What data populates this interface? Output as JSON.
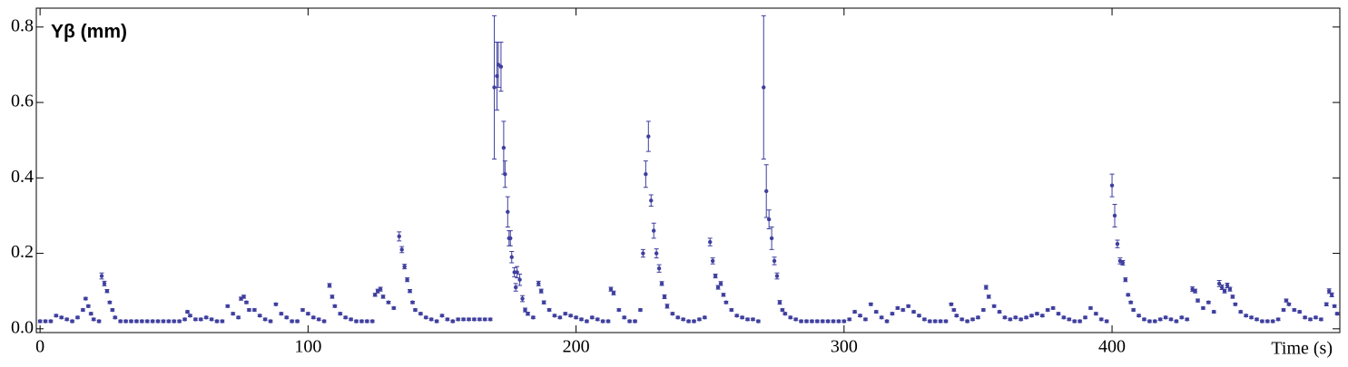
{
  "chart_data": {
    "type": "scatter",
    "x_label": "Time (s)",
    "y_label": "Yβ (mm)",
    "color": "#3f3f9f",
    "xlim": [
      -1.4,
      485
    ],
    "ylim": [
      -0.01,
      0.85
    ],
    "xticks": [
      0,
      100,
      200,
      300,
      400
    ],
    "yticks": [
      {
        "value": 0,
        "label": "0.0"
      },
      0.2,
      0.4,
      0.6,
      0.8
    ],
    "x": [
      0,
      2,
      4,
      6,
      8,
      10,
      12,
      14,
      16,
      17,
      18,
      19,
      20,
      22,
      23,
      24,
      25,
      26,
      27,
      28,
      30,
      32,
      34,
      36,
      38,
      40,
      42,
      44,
      46,
      48,
      50,
      52,
      54,
      55,
      56,
      58,
      60,
      62,
      64,
      66,
      68,
      70,
      72,
      74,
      75,
      76,
      77,
      78,
      80,
      82,
      84,
      86,
      88,
      90,
      92,
      94,
      96,
      98,
      100,
      102,
      104,
      106,
      108,
      109,
      110,
      112,
      114,
      116,
      118,
      120,
      122,
      124,
      125,
      126,
      127,
      128,
      130,
      132,
      134,
      135,
      136,
      137,
      138,
      139,
      140,
      142,
      144,
      146,
      148,
      150,
      152,
      154,
      156,
      158,
      160,
      162,
      164,
      166,
      168,
      169.5,
      170.5,
      171,
      172,
      173,
      173.5,
      174.5,
      175,
      175.5,
      176,
      177,
      177.5,
      178,
      179,
      180,
      181,
      182,
      184,
      186,
      187,
      188,
      190,
      192,
      194,
      196,
      198,
      200,
      202,
      204,
      206,
      208,
      210,
      212,
      213,
      214,
      216,
      218,
      220,
      222,
      224,
      225,
      226,
      227,
      228,
      229,
      230,
      231,
      232,
      233,
      234,
      236,
      238,
      240,
      242,
      244,
      246,
      248,
      250,
      251,
      252,
      253,
      254,
      255,
      256,
      258,
      260,
      262,
      264,
      266,
      268,
      270,
      271,
      272,
      273,
      274,
      275,
      276,
      277,
      278,
      280,
      282,
      284,
      286,
      288,
      290,
      292,
      294,
      296,
      298,
      300,
      302,
      304,
      306,
      308,
      310,
      312,
      314,
      316,
      318,
      320,
      322,
      324,
      326,
      328,
      330,
      332,
      334,
      336,
      338,
      340,
      341,
      342,
      344,
      346,
      348,
      350,
      352,
      353,
      354,
      356,
      358,
      360,
      362,
      364,
      366,
      368,
      370,
      372,
      374,
      376,
      378,
      380,
      382,
      384,
      386,
      388,
      390,
      392,
      394,
      396,
      398,
      400,
      401,
      402,
      403,
      404,
      405,
      406,
      407,
      408,
      410,
      412,
      414,
      416,
      418,
      420,
      422,
      424,
      426,
      428,
      430,
      431,
      432,
      434,
      436,
      438,
      440,
      441,
      442,
      443,
      444,
      445,
      446,
      448,
      450,
      452,
      454,
      456,
      458,
      460,
      462,
      464,
      465,
      466,
      468,
      470,
      472,
      474,
      476,
      478,
      480,
      481,
      482,
      483,
      484
    ],
    "values": [
      0.02,
      0.02,
      0.02,
      0.035,
      0.03,
      0.025,
      0.02,
      0.03,
      0.05,
      0.08,
      0.06,
      0.04,
      0.025,
      0.02,
      0.14,
      0.12,
      0.1,
      0.07,
      0.05,
      0.03,
      0.02,
      0.02,
      0.02,
      0.02,
      0.02,
      0.02,
      0.02,
      0.02,
      0.02,
      0.02,
      0.02,
      0.02,
      0.025,
      0.045,
      0.035,
      0.025,
      0.025,
      0.03,
      0.025,
      0.02,
      0.02,
      0.06,
      0.04,
      0.03,
      0.08,
      0.085,
      0.07,
      0.05,
      0.05,
      0.035,
      0.025,
      0.02,
      0.065,
      0.04,
      0.03,
      0.02,
      0.02,
      0.05,
      0.04,
      0.03,
      0.025,
      0.02,
      0.115,
      0.085,
      0.06,
      0.04,
      0.03,
      0.025,
      0.02,
      0.02,
      0.02,
      0.02,
      0.09,
      0.1,
      0.105,
      0.085,
      0.07,
      0.055,
      0.245,
      0.21,
      0.165,
      0.13,
      0.1,
      0.07,
      0.05,
      0.04,
      0.03,
      0.025,
      0.02,
      0.035,
      0.025,
      0.02,
      0.025,
      0.025,
      0.025,
      0.025,
      0.025,
      0.025,
      0.025,
      0.64,
      0.67,
      0.7,
      0.695,
      0.48,
      0.41,
      0.31,
      0.24,
      0.24,
      0.19,
      0.15,
      0.11,
      0.15,
      0.13,
      0.08,
      0.05,
      0.04,
      0.03,
      0.12,
      0.1,
      0.07,
      0.05,
      0.035,
      0.03,
      0.04,
      0.035,
      0.03,
      0.025,
      0.02,
      0.03,
      0.025,
      0.02,
      0.02,
      0.105,
      0.095,
      0.05,
      0.03,
      0.02,
      0.02,
      0.05,
      0.2,
      0.41,
      0.51,
      0.34,
      0.26,
      0.2,
      0.16,
      0.12,
      0.085,
      0.06,
      0.04,
      0.03,
      0.025,
      0.02,
      0.02,
      0.025,
      0.03,
      0.23,
      0.18,
      0.14,
      0.11,
      0.12,
      0.09,
      0.07,
      0.05,
      0.035,
      0.03,
      0.025,
      0.025,
      0.02,
      0.64,
      0.365,
      0.29,
      0.24,
      0.18,
      0.14,
      0.07,
      0.05,
      0.04,
      0.03,
      0.025,
      0.02,
      0.02,
      0.02,
      0.02,
      0.02,
      0.02,
      0.02,
      0.02,
      0.02,
      0.025,
      0.045,
      0.035,
      0.025,
      0.065,
      0.045,
      0.03,
      0.02,
      0.04,
      0.055,
      0.05,
      0.06,
      0.045,
      0.035,
      0.025,
      0.02,
      0.02,
      0.02,
      0.02,
      0.065,
      0.05,
      0.035,
      0.025,
      0.02,
      0.025,
      0.03,
      0.05,
      0.11,
      0.085,
      0.06,
      0.045,
      0.03,
      0.025,
      0.03,
      0.025,
      0.03,
      0.035,
      0.04,
      0.035,
      0.05,
      0.055,
      0.04,
      0.03,
      0.025,
      0.02,
      0.02,
      0.03,
      0.055,
      0.04,
      0.025,
      0.02,
      0.38,
      0.3,
      0.225,
      0.18,
      0.175,
      0.13,
      0.09,
      0.07,
      0.05,
      0.035,
      0.025,
      0.02,
      0.02,
      0.025,
      0.03,
      0.025,
      0.02,
      0.03,
      0.025,
      0.105,
      0.1,
      0.075,
      0.055,
      0.07,
      0.045,
      0.12,
      0.11,
      0.1,
      0.115,
      0.105,
      0.085,
      0.065,
      0.045,
      0.035,
      0.03,
      0.025,
      0.02,
      0.02,
      0.02,
      0.025,
      0.05,
      0.075,
      0.065,
      0.05,
      0.045,
      0.03,
      0.025,
      0.03,
      0.025,
      0.065,
      0.1,
      0.09,
      0.06,
      0.04
    ],
    "errors": [
      0.003,
      0.003,
      0.003,
      0.003,
      0.003,
      0.003,
      0.003,
      0.003,
      0.003,
      0.003,
      0.003,
      0.003,
      0.003,
      0.003,
      0.008,
      0.006,
      0.004,
      0.003,
      0.003,
      0.003,
      0.003,
      0.003,
      0.003,
      0.003,
      0.003,
      0.003,
      0.003,
      0.003,
      0.003,
      0.003,
      0.003,
      0.003,
      0.003,
      0.003,
      0.003,
      0.003,
      0.003,
      0.003,
      0.003,
      0.003,
      0.003,
      0.003,
      0.003,
      0.003,
      0.004,
      0.004,
      0.003,
      0.003,
      0.003,
      0.003,
      0.003,
      0.003,
      0.003,
      0.003,
      0.003,
      0.003,
      0.003,
      0.003,
      0.003,
      0.003,
      0.003,
      0.003,
      0.005,
      0.004,
      0.003,
      0.003,
      0.003,
      0.003,
      0.003,
      0.003,
      0.003,
      0.003,
      0.004,
      0.005,
      0.005,
      0.004,
      0.003,
      0.003,
      0.012,
      0.008,
      0.006,
      0.005,
      0.004,
      0.003,
      0.003,
      0.003,
      0.003,
      0.003,
      0.003,
      0.003,
      0.003,
      0.003,
      0.003,
      0.003,
      0.003,
      0.003,
      0.003,
      0.003,
      0.003,
      0.19,
      0.09,
      0.06,
      0.065,
      0.07,
      0.035,
      0.04,
      0.02,
      0.02,
      0.015,
      0.012,
      0.01,
      0.015,
      0.015,
      0.008,
      0.005,
      0.004,
      0.003,
      0.006,
      0.005,
      0.004,
      0.003,
      0.003,
      0.003,
      0.003,
      0.003,
      0.003,
      0.003,
      0.003,
      0.003,
      0.003,
      0.003,
      0.003,
      0.005,
      0.005,
      0.003,
      0.003,
      0.003,
      0.003,
      0.003,
      0.01,
      0.035,
      0.04,
      0.015,
      0.02,
      0.012,
      0.01,
      0.005,
      0.005,
      0.005,
      0.003,
      0.003,
      0.003,
      0.003,
      0.003,
      0.003,
      0.003,
      0.01,
      0.008,
      0.005,
      0.005,
      0.005,
      0.004,
      0.003,
      0.003,
      0.003,
      0.003,
      0.003,
      0.003,
      0.003,
      0.19,
      0.07,
      0.025,
      0.03,
      0.01,
      0.008,
      0.005,
      0.003,
      0.003,
      0.003,
      0.003,
      0.003,
      0.003,
      0.003,
      0.003,
      0.003,
      0.003,
      0.003,
      0.003,
      0.003,
      0.003,
      0.003,
      0.003,
      0.003,
      0.003,
      0.003,
      0.003,
      0.003,
      0.003,
      0.003,
      0.003,
      0.003,
      0.003,
      0.003,
      0.003,
      0.003,
      0.003,
      0.003,
      0.003,
      0.003,
      0.003,
      0.003,
      0.003,
      0.003,
      0.003,
      0.003,
      0.003,
      0.005,
      0.004,
      0.003,
      0.003,
      0.003,
      0.003,
      0.003,
      0.003,
      0.003,
      0.003,
      0.003,
      0.003,
      0.003,
      0.003,
      0.003,
      0.003,
      0.003,
      0.003,
      0.003,
      0.003,
      0.003,
      0.003,
      0.003,
      0.003,
      0.03,
      0.03,
      0.01,
      0.008,
      0.006,
      0.005,
      0.003,
      0.003,
      0.003,
      0.003,
      0.003,
      0.003,
      0.003,
      0.003,
      0.003,
      0.003,
      0.003,
      0.003,
      0.003,
      0.006,
      0.005,
      0.004,
      0.003,
      0.003,
      0.003,
      0.008,
      0.006,
      0.005,
      0.006,
      0.005,
      0.004,
      0.003,
      0.003,
      0.003,
      0.003,
      0.003,
      0.003,
      0.003,
      0.003,
      0.003,
      0.003,
      0.004,
      0.003,
      0.003,
      0.003,
      0.003,
      0.003,
      0.003,
      0.003,
      0.004,
      0.006,
      0.005,
      0.003,
      0.003
    ]
  }
}
